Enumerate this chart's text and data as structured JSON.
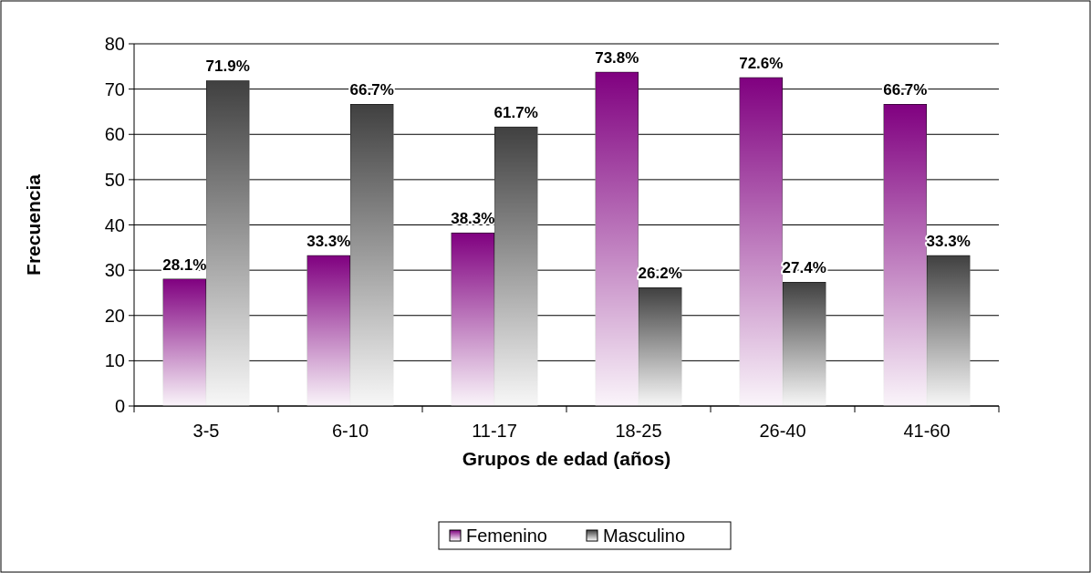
{
  "chart_data": {
    "type": "bar",
    "xlabel": "Grupos de edad (años)",
    "ylabel": "Frecuencia",
    "categories": [
      "3-5",
      "6-10",
      "11-17",
      "18-25",
      "26-40",
      "41-60"
    ],
    "series": [
      {
        "name": "Femenino",
        "color": "#800080",
        "values": [
          28.1,
          33.3,
          38.3,
          73.8,
          72.6,
          66.7
        ],
        "value_labels": [
          "28.1%",
          "33.3%",
          "38.3%",
          "73.8%",
          "72.6%",
          "66.7%"
        ]
      },
      {
        "name": "Masculino",
        "color": "#404040",
        "values": [
          71.9,
          66.7,
          61.7,
          26.2,
          27.4,
          33.3
        ],
        "value_labels": [
          "71.9%",
          "66.7%",
          "61.7%",
          "26.2%",
          "27.4%",
          "33.3%"
        ]
      }
    ],
    "ylim": [
      0,
      80
    ],
    "yticks": [
      0,
      10,
      20,
      30,
      40,
      50,
      60,
      70,
      80
    ],
    "grid": "y",
    "legend": "bottom"
  }
}
